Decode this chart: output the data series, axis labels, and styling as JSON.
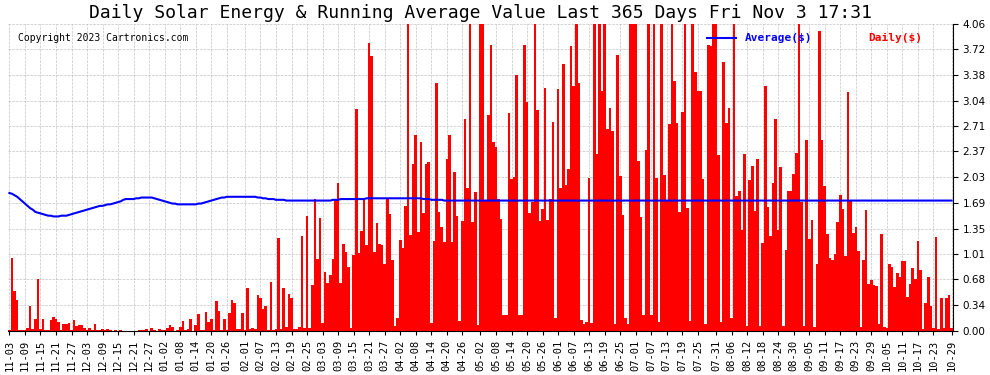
{
  "title": "Daily Solar Energy & Running Average Value Last 365 Days Fri Nov 3 17:31",
  "copyright": "Copyright 2023 Cartronics.com",
  "legend_avg": "Average($)",
  "legend_daily": "Daily($)",
  "bar_color": "#ff0000",
  "avg_color": "#0000ff",
  "background_color": "#ffffff",
  "plot_bg_color": "#ffffff",
  "grid_color": "#aaaaaa",
  "ymax": 4.06,
  "yticks": [
    0.0,
    0.34,
    0.68,
    1.01,
    1.35,
    1.69,
    2.03,
    2.37,
    2.71,
    3.04,
    3.38,
    3.72,
    4.06
  ],
  "title_fontsize": 13,
  "tick_fontsize": 7.5,
  "xlabel_dates": [
    "11-03",
    "11-09",
    "11-15",
    "11-21",
    "11-27",
    "12-03",
    "12-09",
    "12-15",
    "12-21",
    "12-27",
    "01-02",
    "01-08",
    "01-14",
    "01-20",
    "01-26",
    "02-01",
    "02-07",
    "02-13",
    "02-19",
    "02-25",
    "03-03",
    "03-09",
    "03-15",
    "03-21",
    "03-27",
    "04-02",
    "04-08",
    "04-14",
    "04-20",
    "04-26",
    "05-02",
    "05-08",
    "05-14",
    "05-20",
    "05-26",
    "06-01",
    "06-07",
    "06-13",
    "06-19",
    "06-25",
    "07-01",
    "07-07",
    "07-13",
    "07-19",
    "07-25",
    "07-31",
    "08-06",
    "08-12",
    "08-18",
    "08-24",
    "08-30",
    "09-05",
    "09-11",
    "09-17",
    "09-23",
    "09-29",
    "10-05",
    "10-11",
    "10-17",
    "10-23",
    "10-29"
  ],
  "avg_values": [
    1.82,
    1.81,
    1.79,
    1.77,
    1.74,
    1.71,
    1.68,
    1.65,
    1.62,
    1.6,
    1.57,
    1.56,
    1.55,
    1.54,
    1.53,
    1.52,
    1.52,
    1.51,
    1.51,
    1.51,
    1.52,
    1.52,
    1.52,
    1.53,
    1.54,
    1.55,
    1.56,
    1.57,
    1.58,
    1.59,
    1.6,
    1.61,
    1.62,
    1.63,
    1.64,
    1.65,
    1.65,
    1.66,
    1.67,
    1.67,
    1.68,
    1.69,
    1.7,
    1.71,
    1.73,
    1.74,
    1.74,
    1.74,
    1.74,
    1.75,
    1.75,
    1.76,
    1.76,
    1.76,
    1.76,
    1.76,
    1.75,
    1.74,
    1.73,
    1.72,
    1.71,
    1.7,
    1.69,
    1.68,
    1.68,
    1.67,
    1.67,
    1.67,
    1.67,
    1.67,
    1.67,
    1.67,
    1.67,
    1.68,
    1.68,
    1.69,
    1.7,
    1.71,
    1.72,
    1.73,
    1.74,
    1.75,
    1.76,
    1.76,
    1.77,
    1.77,
    1.77,
    1.77,
    1.77,
    1.77,
    1.77,
    1.77,
    1.77,
    1.77,
    1.77,
    1.77,
    1.76,
    1.76,
    1.75,
    1.75,
    1.74,
    1.74,
    1.74,
    1.73,
    1.73,
    1.73,
    1.73,
    1.72,
    1.72,
    1.72,
    1.72,
    1.72,
    1.72,
    1.72,
    1.72,
    1.72,
    1.72,
    1.72,
    1.72,
    1.72,
    1.72,
    1.72,
    1.72,
    1.72,
    1.72,
    1.73,
    1.73,
    1.73,
    1.74,
    1.74,
    1.74,
    1.74,
    1.74,
    1.74,
    1.74,
    1.74,
    1.74,
    1.74,
    1.75,
    1.75,
    1.75,
    1.75,
    1.75,
    1.75,
    1.75,
    1.75,
    1.75,
    1.75,
    1.75,
    1.75,
    1.75,
    1.75,
    1.75,
    1.75,
    1.75,
    1.75,
    1.75,
    1.75,
    1.75,
    1.75,
    1.74,
    1.74,
    1.74,
    1.73,
    1.73,
    1.73,
    1.73,
    1.73,
    1.72,
    1.72,
    1.72,
    1.72,
    1.72,
    1.72,
    1.72,
    1.72,
    1.72,
    1.72,
    1.72,
    1.72,
    1.72,
    1.72,
    1.72,
    1.72,
    1.72,
    1.72,
    1.72,
    1.72,
    1.72,
    1.72,
    1.72,
    1.72,
    1.72,
    1.72,
    1.72,
    1.72,
    1.72,
    1.72,
    1.72,
    1.72,
    1.72,
    1.72,
    1.72,
    1.72,
    1.72,
    1.72,
    1.72,
    1.72,
    1.72,
    1.72,
    1.72,
    1.72,
    1.72,
    1.72,
    1.72,
    1.72,
    1.72,
    1.72,
    1.72,
    1.72,
    1.72,
    1.72,
    1.72,
    1.72,
    1.72,
    1.72,
    1.72,
    1.72,
    1.72,
    1.72,
    1.72,
    1.72,
    1.72,
    1.72,
    1.72,
    1.72,
    1.72,
    1.72,
    1.72,
    1.72,
    1.72,
    1.72,
    1.72,
    1.72,
    1.72,
    1.72,
    1.72,
    1.72,
    1.72,
    1.72,
    1.72,
    1.72,
    1.72,
    1.72,
    1.72,
    1.72,
    1.72,
    1.72,
    1.72,
    1.72,
    1.72,
    1.72,
    1.72,
    1.72,
    1.72,
    1.72,
    1.72,
    1.72,
    1.72,
    1.72,
    1.72,
    1.72,
    1.72,
    1.72,
    1.72,
    1.72,
    1.72,
    1.72,
    1.72,
    1.72,
    1.72,
    1.72,
    1.72,
    1.72,
    1.72,
    1.72,
    1.72,
    1.72,
    1.72,
    1.72,
    1.72,
    1.72,
    1.72,
    1.72,
    1.72,
    1.72,
    1.72,
    1.72,
    1.72,
    1.72,
    1.72,
    1.72,
    1.72,
    1.72,
    1.72,
    1.72,
    1.72,
    1.72,
    1.72,
    1.72,
    1.72,
    1.72,
    1.72,
    1.72,
    1.72,
    1.72,
    1.72,
    1.72,
    1.72,
    1.72,
    1.72,
    1.72,
    1.72,
    1.72,
    1.72,
    1.72,
    1.72,
    1.72,
    1.72,
    1.72,
    1.72,
    1.72,
    1.72,
    1.72,
    1.72,
    1.72,
    1.72,
    1.72,
    1.72,
    1.72,
    1.72,
    1.72,
    1.72,
    1.72,
    1.72,
    1.72,
    1.72,
    1.72,
    1.72,
    1.72,
    1.72,
    1.72,
    1.72,
    1.72,
    1.72,
    1.72,
    1.72,
    1.72,
    1.72,
    1.72,
    1.72,
    1.72,
    1.72,
    1.72,
    1.72,
    1.72,
    1.72,
    1.72,
    1.72,
    1.72
  ]
}
